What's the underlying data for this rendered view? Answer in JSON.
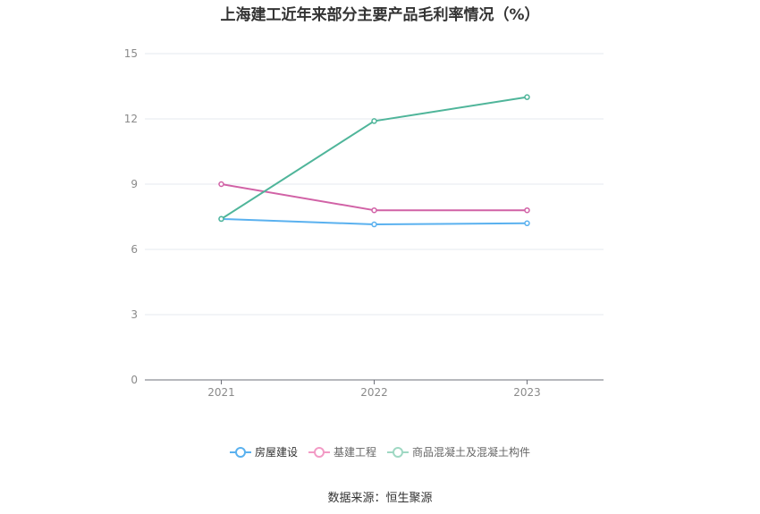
{
  "chart_data": {
    "type": "line",
    "title": "上海建工近年来部分主要产品毛利率情况（%）",
    "categories": [
      "2021",
      "2022",
      "2023"
    ],
    "ylim": [
      0,
      15
    ],
    "yticks": [
      0,
      3,
      6,
      9,
      12,
      15
    ],
    "grid": true,
    "legend_position": "bottom",
    "series": [
      {
        "name": "房屋建设",
        "color": "#5ab1ef",
        "values": [
          7.4,
          7.15,
          7.2
        ]
      },
      {
        "name": "基建工程",
        "color": "#d162a6",
        "values": [
          9.0,
          7.8,
          7.8
        ]
      },
      {
        "name": "商品混凝土及混凝土构件",
        "color": "#4fb59a",
        "values": [
          7.4,
          11.9,
          13.0
        ]
      }
    ]
  },
  "legend": {
    "items": [
      {
        "label": "房屋建设",
        "color": "#5ab1ef"
      },
      {
        "label": "基建工程",
        "color": "#f29ac5"
      },
      {
        "label": "商品混凝土及混凝土构件",
        "color": "#9fd8c3"
      }
    ]
  },
  "source": "数据来源：恒生聚源"
}
